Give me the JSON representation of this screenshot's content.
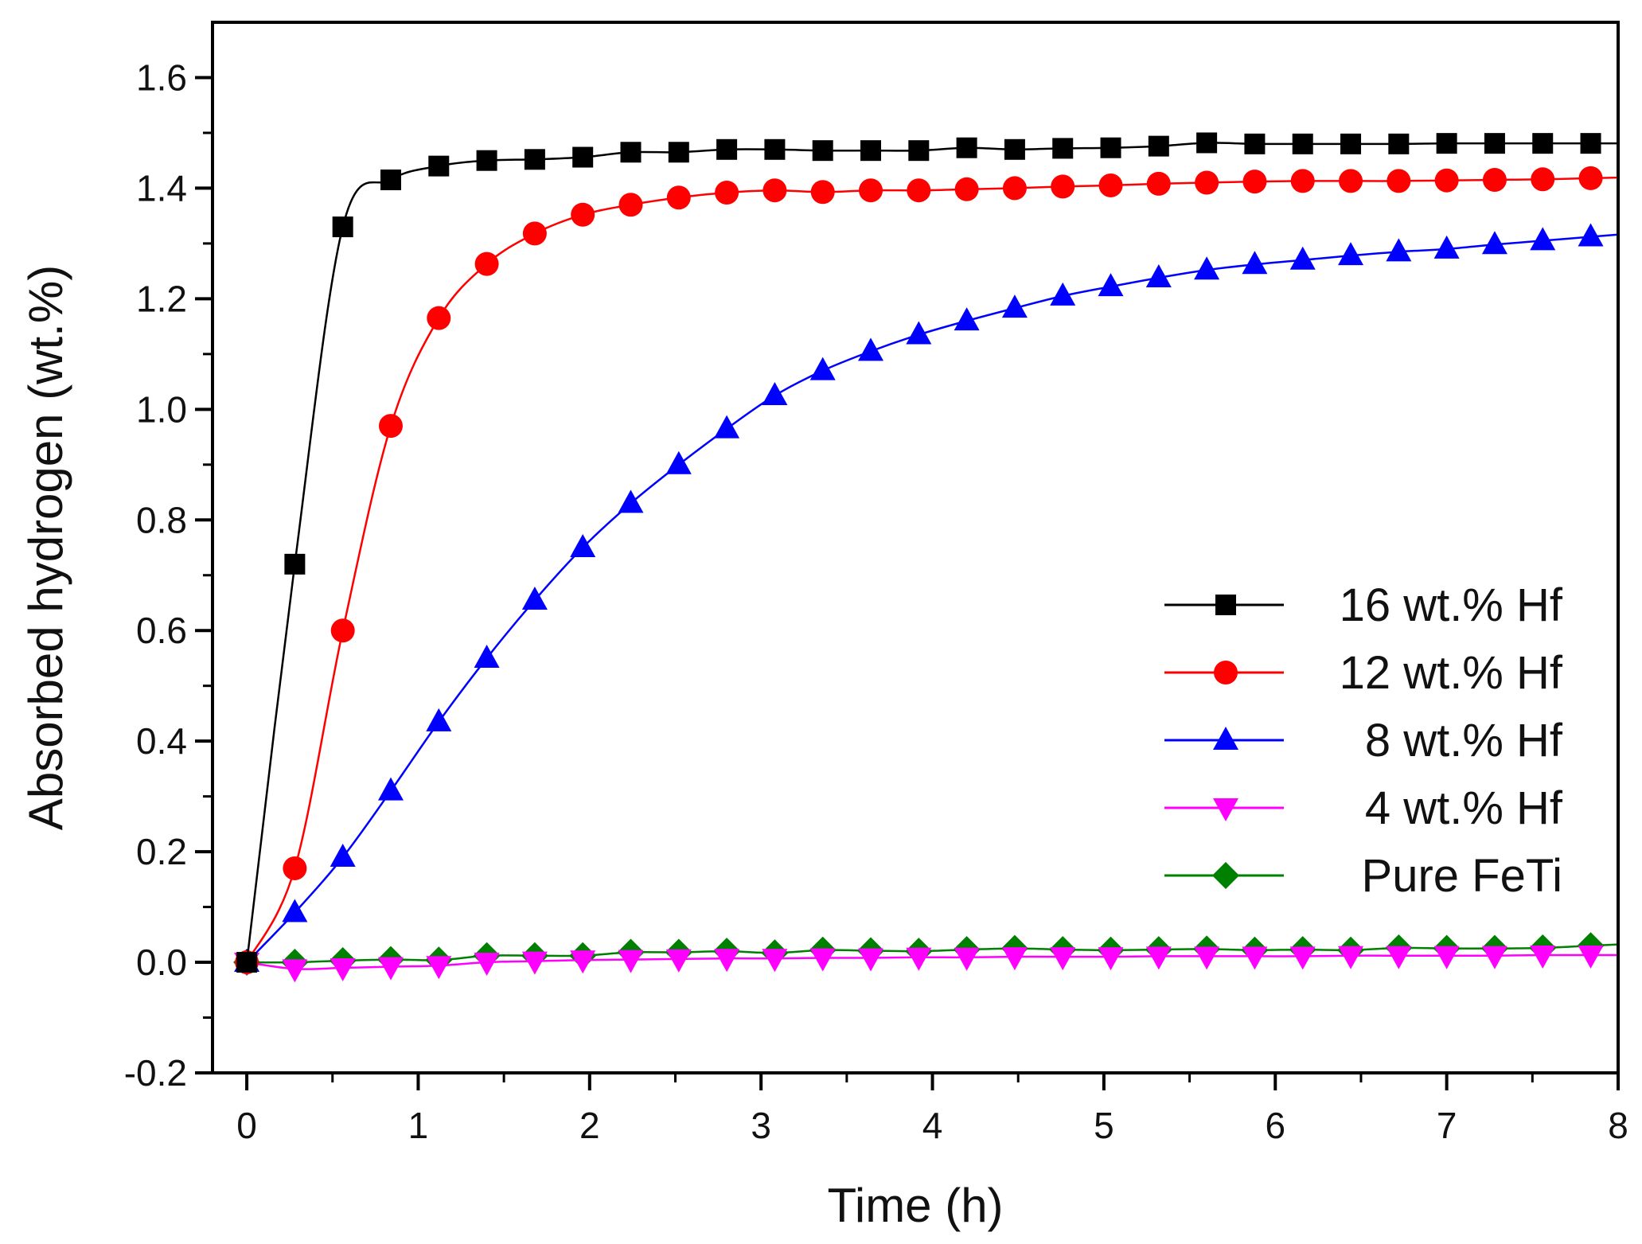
{
  "chart_data": {
    "type": "line",
    "xlabel": "Time (h)",
    "ylabel": "Absorbed hydrogen (wt.%)",
    "xlim": [
      -0.2,
      8
    ],
    "ylim": [
      -0.2,
      1.7
    ],
    "x_ticks": [
      "0",
      "1",
      "2",
      "3",
      "4",
      "5",
      "6",
      "7",
      "8"
    ],
    "y_ticks": [
      "-0.2",
      "0.0",
      "0.2",
      "0.4",
      "0.6",
      "0.8",
      "1.0",
      "1.2",
      "1.4",
      "1.6"
    ],
    "grid": false,
    "legend_position": "right",
    "x": [
      0,
      0.28,
      0.56,
      0.84,
      1.12,
      1.4,
      1.68,
      1.96,
      2.24,
      2.52,
      2.8,
      3.08,
      3.36,
      3.64,
      3.92,
      4.2,
      4.48,
      4.76,
      5.04,
      5.32,
      5.6,
      5.88,
      6.16,
      6.44,
      6.72,
      7.0,
      7.28,
      7.56,
      7.84
    ],
    "series": [
      {
        "name": "16 wt.% Hf",
        "color": "#000000",
        "marker": "square",
        "values": [
          0,
          0.72,
          1.33,
          1.415,
          1.44,
          1.45,
          1.452,
          1.456,
          1.465,
          1.465,
          1.47,
          1.47,
          1.468,
          1.468,
          1.468,
          1.473,
          1.47,
          1.472,
          1.473,
          1.476,
          1.482,
          1.48,
          1.48,
          1.48,
          1.48,
          1.481,
          1.481,
          1.481,
          1.481
        ]
      },
      {
        "name": "12 wt.% Hf",
        "color": "#ff0000",
        "marker": "circle",
        "values": [
          0,
          0.17,
          0.6,
          0.97,
          1.165,
          1.263,
          1.318,
          1.352,
          1.37,
          1.383,
          1.392,
          1.396,
          1.393,
          1.396,
          1.396,
          1.398,
          1.4,
          1.403,
          1.405,
          1.408,
          1.41,
          1.412,
          1.413,
          1.413,
          1.413,
          1.414,
          1.415,
          1.416,
          1.418
        ]
      },
      {
        "name": "8 wt.% Hf",
        "color": "#0000ff",
        "marker": "triangle-up",
        "values": [
          0,
          0.09,
          0.19,
          0.31,
          0.435,
          0.55,
          0.655,
          0.75,
          0.83,
          0.9,
          0.965,
          1.025,
          1.07,
          1.105,
          1.135,
          1.16,
          1.183,
          1.205,
          1.222,
          1.238,
          1.252,
          1.262,
          1.27,
          1.278,
          1.285,
          1.29,
          1.298,
          1.305,
          1.312
        ]
      },
      {
        "name": "4 wt.% Hf",
        "color": "#ff00ff",
        "marker": "triangle-down",
        "values": [
          0,
          -0.012,
          -0.01,
          -0.008,
          -0.006,
          0.0,
          0.002,
          0.004,
          0.005,
          0.006,
          0.007,
          0.007,
          0.008,
          0.008,
          0.009,
          0.009,
          0.01,
          0.01,
          0.01,
          0.011,
          0.011,
          0.011,
          0.011,
          0.012,
          0.012,
          0.012,
          0.012,
          0.013,
          0.013
        ]
      },
      {
        "name": "Pure FeTi",
        "color": "#008000",
        "marker": "diamond",
        "values": [
          0,
          0.0,
          0.003,
          0.005,
          0.004,
          0.012,
          0.012,
          0.012,
          0.018,
          0.018,
          0.02,
          0.017,
          0.022,
          0.021,
          0.02,
          0.023,
          0.025,
          0.023,
          0.022,
          0.023,
          0.024,
          0.022,
          0.023,
          0.022,
          0.026,
          0.025,
          0.025,
          0.026,
          0.03
        ]
      }
    ]
  }
}
